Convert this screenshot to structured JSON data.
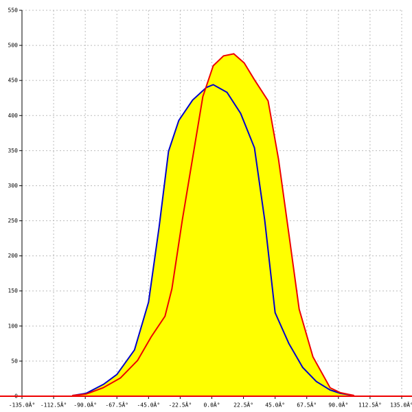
{
  "chart_data": {
    "type": "area",
    "xlim": [
      -135,
      135
    ],
    "ylim": [
      0,
      550
    ],
    "xticks": [
      {
        "value": -135,
        "label": "-135.0Â°"
      },
      {
        "value": -112.5,
        "label": "-112.5Â°"
      },
      {
        "value": -90,
        "label": "-90.0Â°"
      },
      {
        "value": -67.5,
        "label": "-67.5Â°"
      },
      {
        "value": -45,
        "label": "-45.0Â°"
      },
      {
        "value": -22.5,
        "label": "-22.5Â°"
      },
      {
        "value": 0,
        "label": "0.0Â°"
      },
      {
        "value": 22.5,
        "label": "22.5Â°"
      },
      {
        "value": 45,
        "label": "45.0Â°"
      },
      {
        "value": 67.5,
        "label": "67.5Â°"
      },
      {
        "value": 90,
        "label": "90.0Â°"
      },
      {
        "value": 112.5,
        "label": "112.5Â°"
      },
      {
        "value": 135,
        "label": "135.0Â°"
      }
    ],
    "yticks": [
      0,
      50,
      100,
      150,
      200,
      250,
      300,
      350,
      400,
      450,
      500,
      550
    ],
    "grid": true,
    "fill": "#ffff00",
    "series": [
      {
        "color": "#0000cc",
        "x": [
          -99,
          -89.5,
          -77,
          -67.5,
          -55,
          -45,
          -37.5,
          -30.8,
          -23.5,
          -13.7,
          -3.9,
          1,
          10.8,
          20.5,
          30.3,
          37.6,
          45,
          54.8,
          64.6,
          74.3,
          84,
          91.4,
          101
        ],
        "values": [
          1,
          4,
          17,
          31,
          66,
          134,
          241,
          349,
          393,
          422,
          440,
          444,
          433,
          403,
          354,
          251,
          119,
          75,
          41,
          21,
          9,
          4,
          1
        ]
      },
      {
        "color": "#ee0000",
        "x": [
          -99.3,
          -89.5,
          -77.3,
          -65,
          -52.8,
          -43,
          -33.3,
          -28.4,
          -21,
          -13.7,
          -6.4,
          1,
          8.3,
          15.6,
          23,
          30.3,
          40,
          47.4,
          54.8,
          62.1,
          71.9,
          84.1,
          91.4,
          101.2
        ],
        "values": [
          1,
          3,
          12,
          26,
          51,
          85,
          114,
          153,
          251,
          339,
          427,
          471,
          485,
          488,
          475,
          451,
          421,
          338,
          231,
          124,
          56,
          12,
          5,
          1
        ]
      }
    ]
  }
}
